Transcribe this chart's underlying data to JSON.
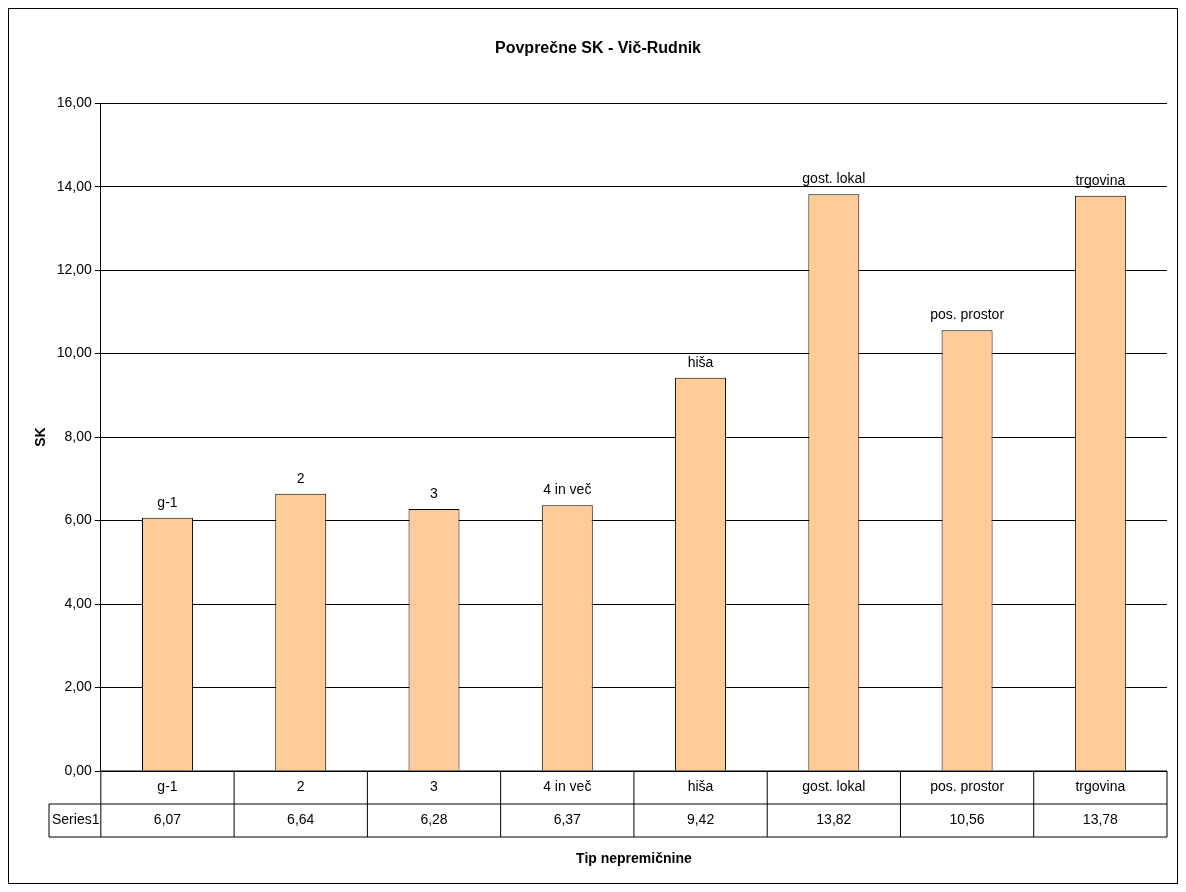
{
  "chart_data": {
    "type": "bar",
    "title": "Povprečne SK - Vič-Rudnik",
    "xlabel": "Tip nepremičnine",
    "ylabel": "SK",
    "categories": [
      "g-1",
      "2",
      "3",
      "4 in več",
      "hiša",
      "gost. lokal",
      "pos. prostor",
      "trgovina"
    ],
    "series": [
      {
        "name": "Series1",
        "color": "#ffcc99",
        "values": [
          6.07,
          6.64,
          6.28,
          6.37,
          9.42,
          13.82,
          10.56,
          13.78
        ],
        "value_labels": [
          "6,07",
          "6,64",
          "6,28",
          "6,37",
          "9,42",
          "13,82",
          "10,56",
          "13,78"
        ]
      }
    ],
    "annotations": [
      {
        "text": "g-1",
        "x": "g-1",
        "y": 6.07
      },
      {
        "text": "2",
        "x": "2",
        "y": 6.64
      },
      {
        "text": "3",
        "x": "3",
        "y": 6.28
      },
      {
        "text": "4 in več",
        "x": "4 in več",
        "y": 6.37
      },
      {
        "text": "hiša",
        "x": "hiša",
        "y": 9.42
      },
      {
        "text": "gost. lokal",
        "x": "gost. lokal",
        "y": 13.82
      },
      {
        "text": "pos. prostor",
        "x": "pos. prostor",
        "y": 10.56
      },
      {
        "text": "trgovina",
        "x": "trgovina",
        "y": 13.78
      }
    ],
    "ylim": [
      0,
      16
    ],
    "yticks": [
      {
        "value": 0,
        "label": "0,00"
      },
      {
        "value": 2,
        "label": "2,00"
      },
      {
        "value": 4,
        "label": "4,00"
      },
      {
        "value": 6,
        "label": "6,00"
      },
      {
        "value": 8,
        "label": "8,00"
      },
      {
        "value": 10,
        "label": "10,00"
      },
      {
        "value": 12,
        "label": "12,00"
      },
      {
        "value": 14,
        "label": "14,00"
      },
      {
        "value": 16,
        "label": "16,00"
      }
    ],
    "grid": "y",
    "legend": false
  }
}
